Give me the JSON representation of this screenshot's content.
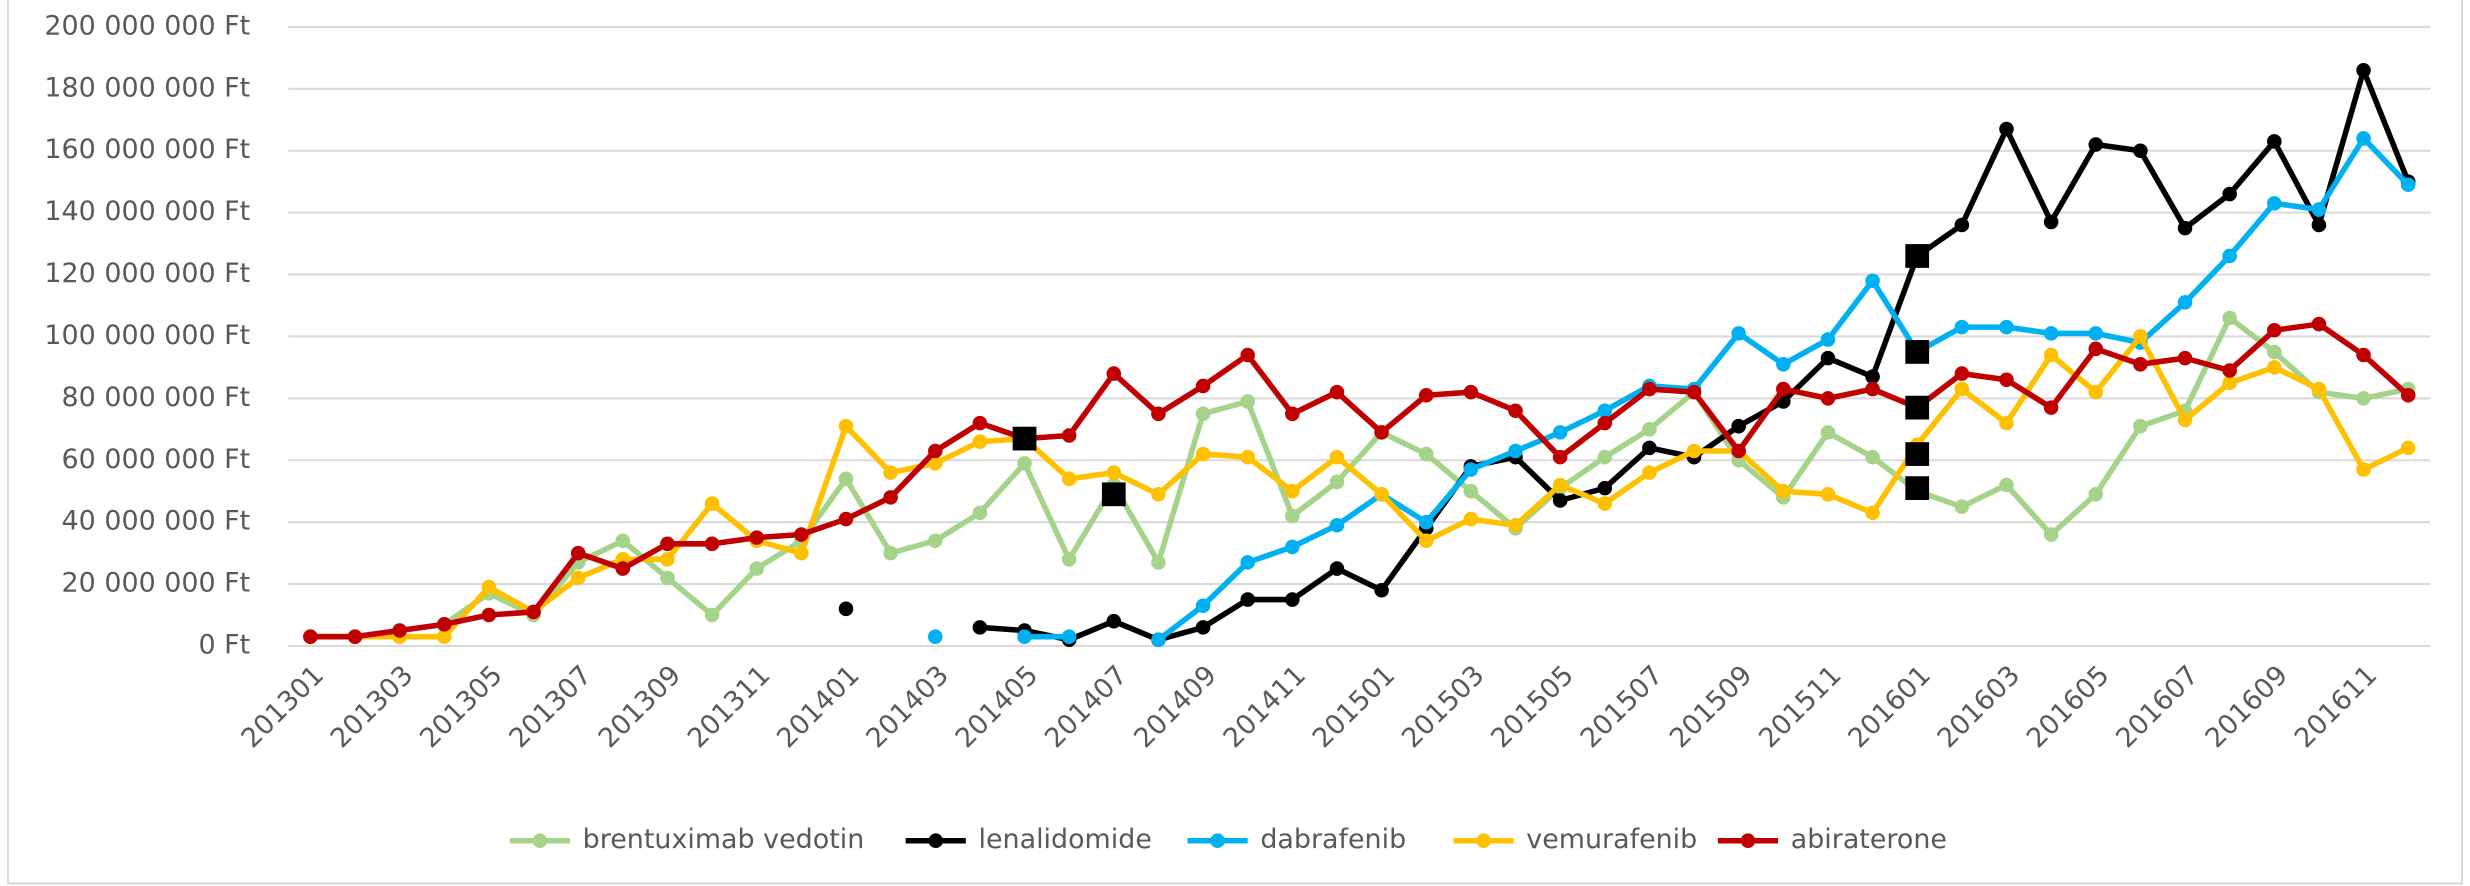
{
  "chart_data": {
    "type": "line",
    "categories": [
      "201301",
      null,
      "201303",
      null,
      "201305",
      null,
      "201307",
      null,
      "201309",
      null,
      "201311",
      null,
      "201401",
      null,
      "201403",
      null,
      "201405",
      null,
      "201407",
      null,
      "201409",
      null,
      "201411",
      null,
      "201501",
      null,
      "201503",
      null,
      "201505",
      null,
      "201507",
      null,
      "201509",
      null,
      "201511",
      null,
      "201601",
      null,
      "201603",
      null,
      "201605",
      null,
      "201607",
      null,
      "201609",
      null,
      "201611",
      null
    ],
    "series": [
      {
        "name": "brentuximab vedotin",
        "color": "#a5d38a",
        "values": [
          3000000,
          3000000,
          5000000,
          7000000,
          17000000,
          10000000,
          27000000,
          34000000,
          22000000,
          10000000,
          25000000,
          34000000,
          54000000,
          30000000,
          34000000,
          43000000,
          59000000,
          28000000,
          52000000,
          27000000,
          75000000,
          79000000,
          42000000,
          53000000,
          69000000,
          62000000,
          50000000,
          38000000,
          51000000,
          61000000,
          70000000,
          82000000,
          60000000,
          48000000,
          69000000,
          61000000,
          50000000,
          45000000,
          52000000,
          36000000,
          49000000,
          71000000,
          76000000,
          106000000,
          95000000,
          82000000,
          80000000,
          83000000
        ]
      },
      {
        "name": "lenalidomide",
        "color": "#000000",
        "values": [
          null,
          null,
          null,
          null,
          null,
          null,
          null,
          null,
          null,
          null,
          null,
          null,
          12000000,
          null,
          null,
          6000000,
          5000000,
          2000000,
          8000000,
          2000000,
          6000000,
          15000000,
          15000000,
          25000000,
          18000000,
          38000000,
          58000000,
          61000000,
          47000000,
          51000000,
          64000000,
          61000000,
          71000000,
          79000000,
          93000000,
          87000000,
          126000000,
          136000000,
          167000000,
          137000000,
          162000000,
          160000000,
          135000000,
          146000000,
          163000000,
          136000000,
          186000000,
          150000000
        ]
      },
      {
        "name": "dabrafenib",
        "color": "#00b0f0",
        "values": [
          null,
          null,
          null,
          null,
          null,
          null,
          null,
          null,
          null,
          null,
          null,
          null,
          null,
          null,
          3000000,
          null,
          3000000,
          3000000,
          null,
          2000000,
          13000000,
          27000000,
          32000000,
          39000000,
          49000000,
          40000000,
          57000000,
          63000000,
          69000000,
          76000000,
          84000000,
          83000000,
          101000000,
          91000000,
          99000000,
          118000000,
          95000000,
          103000000,
          103000000,
          101000000,
          101000000,
          98000000,
          111000000,
          126000000,
          143000000,
          141000000,
          164000000,
          149000000
        ]
      },
      {
        "name": "vemurafenib",
        "color": "#ffc000",
        "values": [
          3000000,
          3000000,
          3000000,
          3000000,
          19000000,
          11000000,
          22000000,
          28000000,
          28000000,
          46000000,
          34000000,
          30000000,
          71000000,
          56000000,
          59000000,
          66000000,
          67000000,
          54000000,
          56000000,
          49000000,
          62000000,
          61000000,
          50000000,
          61000000,
          49000000,
          34000000,
          41000000,
          39000000,
          52000000,
          46000000,
          56000000,
          63000000,
          63000000,
          50000000,
          49000000,
          43000000,
          65000000,
          83000000,
          72000000,
          94000000,
          82000000,
          100000000,
          73000000,
          85000000,
          90000000,
          83000000,
          57000000,
          64000000
        ]
      },
      {
        "name": "abiraterone",
        "color": "#c00000",
        "values": [
          3000000,
          3000000,
          5000000,
          7000000,
          10000000,
          11000000,
          30000000,
          25000000,
          33000000,
          33000000,
          35000000,
          36000000,
          41000000,
          48000000,
          63000000,
          72000000,
          67000000,
          68000000,
          88000000,
          75000000,
          84000000,
          94000000,
          75000000,
          82000000,
          69000000,
          81000000,
          82000000,
          76000000,
          61000000,
          72000000,
          83000000,
          82000000,
          63000000,
          83000000,
          80000000,
          83000000,
          77000000,
          88000000,
          86000000,
          77000000,
          96000000,
          91000000,
          93000000,
          89000000,
          102000000,
          104000000,
          94000000,
          81000000
        ]
      }
    ],
    "square_markers": [
      {
        "x": "201405",
        "value": 67000000
      },
      {
        "x": "201407",
        "value": 49000000
      },
      {
        "x": "201601",
        "value": 126000000
      },
      {
        "x": "201601",
        "value": 95000000
      },
      {
        "x": "201601",
        "value": 77000000
      },
      {
        "x": "201601",
        "value": 62000000
      },
      {
        "x": "201601",
        "value": 51000000
      }
    ],
    "ylim": [
      0,
      200000000
    ],
    "yticks": [
      {
        "value": 0,
        "label": "0 Ft"
      },
      {
        "value": 20000000,
        "label": "20 000 000 Ft"
      },
      {
        "value": 40000000,
        "label": "40 000 000 Ft"
      },
      {
        "value": 60000000,
        "label": "60 000 000 Ft"
      },
      {
        "value": 80000000,
        "label": "80 000 000 Ft"
      },
      {
        "value": 100000000,
        "label": "100 000 000 Ft"
      },
      {
        "value": 120000000,
        "label": "120 000 000 Ft"
      },
      {
        "value": 140000000,
        "label": "140 000 000 Ft"
      },
      {
        "value": 160000000,
        "label": "160 000 000 Ft"
      },
      {
        "value": 180000000,
        "label": "180 000 000 Ft"
      },
      {
        "value": 200000000,
        "label": "200 000 000 Ft"
      }
    ],
    "grid": true,
    "legend": "bottom"
  }
}
